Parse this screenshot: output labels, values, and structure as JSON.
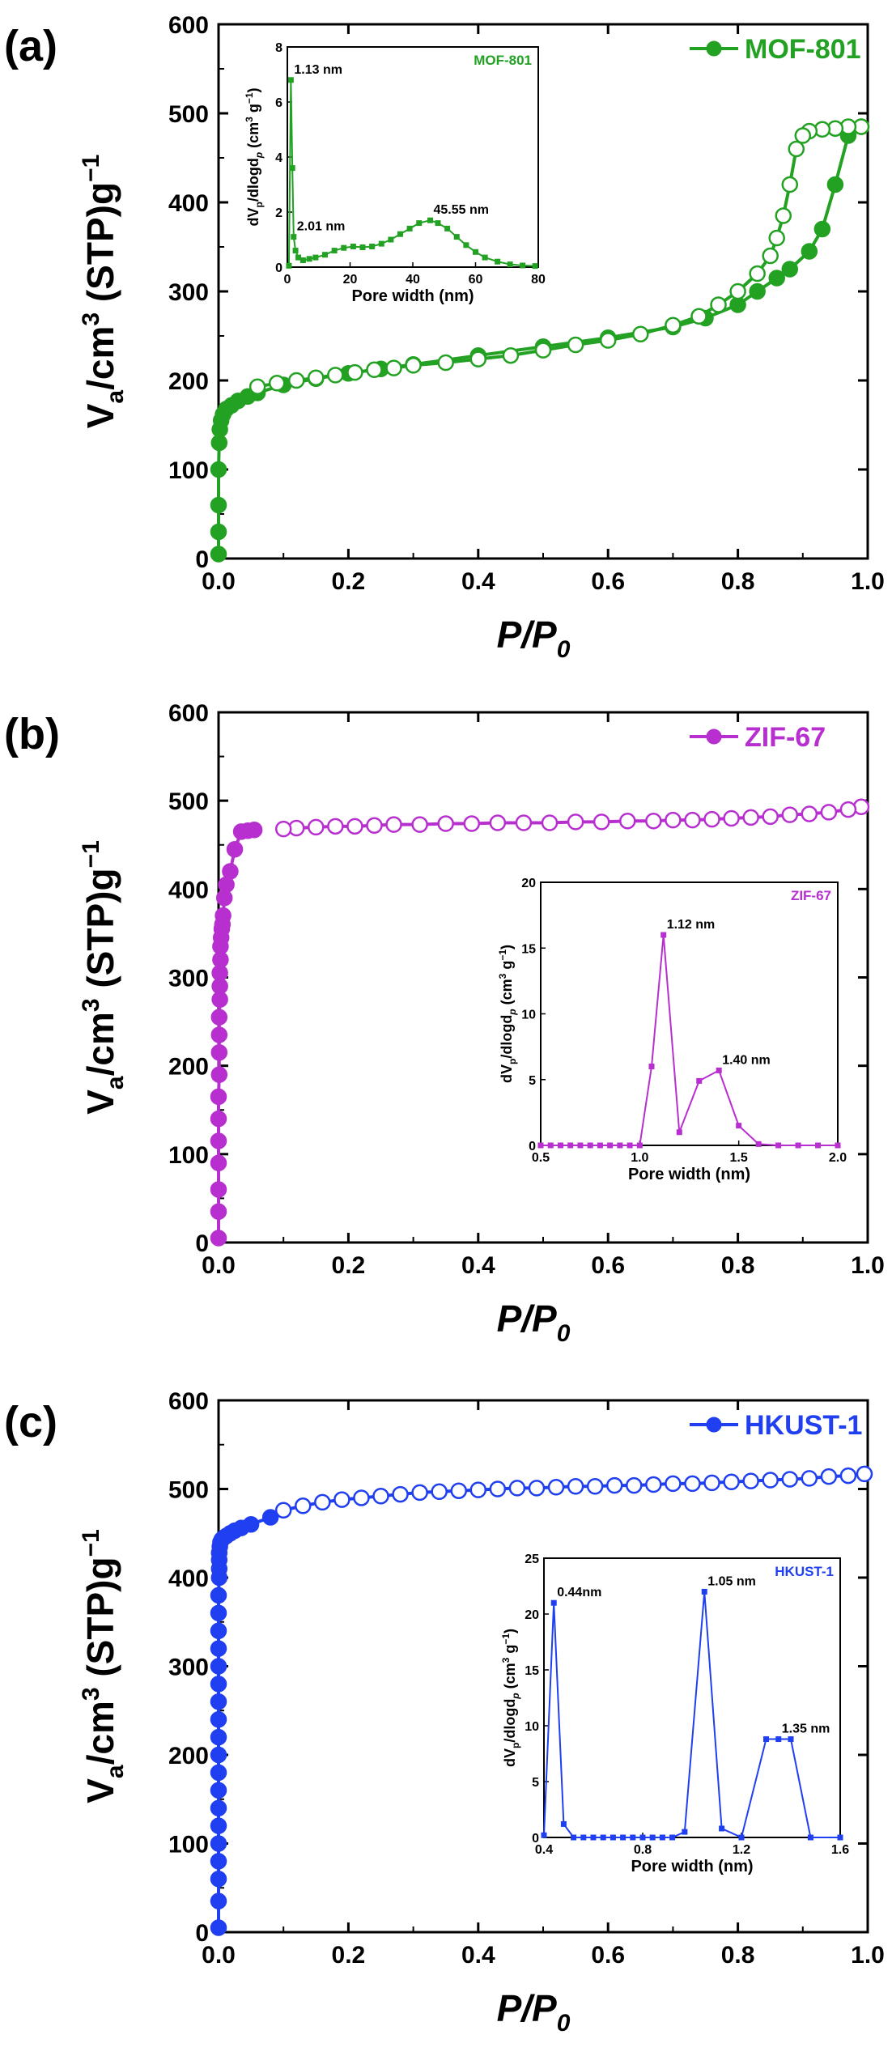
{
  "colors": {
    "mof801": "#22a122",
    "zif67": "#b82fd0",
    "hkust1": "#1f3ff0",
    "axis": "#000000"
  },
  "chart_data": [
    {
      "type": "line",
      "panel_label": "(a)",
      "legend": "MOF-801",
      "xlabel_main": "P/P",
      "xlabel_sub": "0",
      "ylabel_main": "V",
      "ylabel_sub": "a",
      "ylabel_rest": "/cm",
      "ylabel_sup1": "3",
      "ylabel_tail": " (STP)g",
      "ylabel_sup2": "−1",
      "xlim": [
        0,
        1.0
      ],
      "ylim": [
        0,
        600
      ],
      "xticks": [
        "0.0",
        "0.2",
        "0.4",
        "0.6",
        "0.8",
        "1.0"
      ],
      "yticks": [
        "0",
        "100",
        "200",
        "300",
        "400",
        "500",
        "600"
      ],
      "series": [
        {
          "name": "adsorption",
          "marker": "filled",
          "x": [
            0.0,
            0.0,
            0.0,
            0.0,
            0.001,
            0.002,
            0.004,
            0.007,
            0.012,
            0.02,
            0.03,
            0.045,
            0.06,
            0.1,
            0.15,
            0.2,
            0.25,
            0.3,
            0.4,
            0.5,
            0.6,
            0.7,
            0.75,
            0.8,
            0.83,
            0.86,
            0.88,
            0.91,
            0.93,
            0.95,
            0.97,
            0.99
          ],
          "y": [
            5,
            30,
            60,
            100,
            130,
            145,
            155,
            162,
            168,
            172,
            177,
            182,
            186,
            195,
            202,
            208,
            213,
            218,
            228,
            238,
            248,
            260,
            270,
            285,
            300,
            315,
            325,
            345,
            370,
            420,
            475,
            485
          ]
        },
        {
          "name": "desorption",
          "marker": "open",
          "x": [
            0.99,
            0.97,
            0.95,
            0.93,
            0.91,
            0.9,
            0.89,
            0.88,
            0.87,
            0.86,
            0.85,
            0.83,
            0.8,
            0.77,
            0.74,
            0.7,
            0.65,
            0.6,
            0.55,
            0.5,
            0.45,
            0.4,
            0.35,
            0.3,
            0.27,
            0.24,
            0.21,
            0.18,
            0.15,
            0.12,
            0.09,
            0.06
          ],
          "y": [
            485,
            485,
            483,
            482,
            480,
            475,
            460,
            420,
            385,
            360,
            340,
            320,
            300,
            285,
            272,
            262,
            252,
            245,
            240,
            234,
            228,
            224,
            220,
            217,
            214,
            212,
            209,
            206,
            203,
            200,
            197,
            193
          ]
        }
      ],
      "inset": {
        "legend": "MOF-801",
        "xlabel": "Pore width (nm)",
        "ylabel_main": "dV",
        "ylabel_sub1": "p",
        "ylabel_mid": "/dlogd",
        "ylabel_sub2": "p",
        "ylabel_rest": " (cm",
        "ylabel_sup1": "3",
        "ylabel_mid2": " g",
        "ylabel_sup2": "−1",
        "ylabel_end": ")",
        "xlim": [
          0,
          80
        ],
        "ylim": [
          0,
          8
        ],
        "xticks": [
          "0",
          "20",
          "40",
          "60",
          "80"
        ],
        "yticks": [
          "0",
          "2",
          "4",
          "6",
          "8"
        ],
        "x": [
          0.5,
          1.13,
          1.6,
          2.01,
          2.6,
          3.5,
          5,
          7,
          9,
          12,
          15,
          18,
          21,
          24,
          27,
          30,
          33,
          36,
          39,
          42,
          45.55,
          48,
          51,
          54,
          57,
          60,
          63,
          67,
          71,
          75,
          79
        ],
        "y": [
          0.05,
          6.8,
          3.6,
          1.1,
          0.6,
          0.35,
          0.25,
          0.3,
          0.35,
          0.45,
          0.6,
          0.7,
          0.75,
          0.72,
          0.75,
          0.85,
          1.0,
          1.2,
          1.4,
          1.6,
          1.7,
          1.6,
          1.4,
          1.1,
          0.8,
          0.55,
          0.35,
          0.2,
          0.1,
          0.06,
          0.04
        ],
        "annotations": [
          {
            "text": "1.13 nm",
            "x": 1.13,
            "y": 6.8
          },
          {
            "text": "2.01 nm",
            "x": 2.01,
            "y": 1.1
          },
          {
            "text": "45.55 nm",
            "x": 45.55,
            "y": 1.7
          }
        ]
      }
    },
    {
      "type": "line",
      "panel_label": "(b)",
      "legend": "ZIF-67",
      "xlabel_main": "P/P",
      "xlabel_sub": "0",
      "ylabel_main": "V",
      "ylabel_sub": "a",
      "ylabel_rest": "/cm",
      "ylabel_sup1": "3",
      "ylabel_tail": " (STP)g",
      "ylabel_sup2": "−1",
      "xlim": [
        0,
        1.0
      ],
      "ylim": [
        0,
        600
      ],
      "xticks": [
        "0.0",
        "0.2",
        "0.4",
        "0.6",
        "0.8",
        "1.0"
      ],
      "yticks": [
        "0",
        "100",
        "200",
        "300",
        "400",
        "500",
        "600"
      ],
      "series": [
        {
          "name": "adsorption",
          "marker": "filled",
          "x": [
            0.0,
            0.0,
            0.0,
            0.0,
            0.0,
            0.0,
            0.0,
            0.001,
            0.001,
            0.001,
            0.001,
            0.002,
            0.002,
            0.002,
            0.003,
            0.003,
            0.004,
            0.005,
            0.006,
            0.007,
            0.009,
            0.012,
            0.018,
            0.025,
            0.035,
            0.045,
            0.055
          ],
          "y": [
            5,
            35,
            60,
            90,
            115,
            140,
            165,
            190,
            215,
            235,
            255,
            275,
            290,
            305,
            320,
            335,
            345,
            355,
            360,
            370,
            390,
            405,
            420,
            445,
            465,
            466,
            467
          ]
        },
        {
          "name": "desorption",
          "marker": "open",
          "x": [
            0.99,
            0.97,
            0.94,
            0.91,
            0.88,
            0.85,
            0.82,
            0.79,
            0.76,
            0.73,
            0.7,
            0.67,
            0.63,
            0.59,
            0.55,
            0.51,
            0.47,
            0.43,
            0.39,
            0.35,
            0.31,
            0.27,
            0.24,
            0.21,
            0.18,
            0.15,
            0.12,
            0.1
          ],
          "y": [
            493,
            490,
            487,
            485,
            484,
            482,
            481,
            480,
            479,
            478,
            478,
            477,
            477,
            476,
            476,
            475,
            475,
            475,
            474,
            474,
            473,
            473,
            472,
            471,
            471,
            470,
            469,
            468
          ]
        }
      ],
      "inset": {
        "legend": "ZIF-67",
        "xlabel": "Pore width (nm)",
        "ylabel_main": "dV",
        "ylabel_sub1": "p",
        "ylabel_mid": "/dlogd",
        "ylabel_sub2": "p",
        "ylabel_rest": " (cm",
        "ylabel_sup1": "3",
        "ylabel_mid2": " g",
        "ylabel_sup2": "−1",
        "ylabel_end": ")",
        "xlim": [
          0.5,
          2.0
        ],
        "ylim": [
          0,
          20
        ],
        "xticks": [
          "0.5",
          "1.0",
          "1.5",
          "2.0"
        ],
        "yticks": [
          "0",
          "5",
          "10",
          "15",
          "20"
        ],
        "x": [
          0.5,
          0.55,
          0.6,
          0.65,
          0.7,
          0.75,
          0.8,
          0.85,
          0.9,
          0.95,
          1.0,
          1.06,
          1.12,
          1.2,
          1.3,
          1.4,
          1.5,
          1.6,
          1.7,
          1.8,
          1.9,
          2.0
        ],
        "y": [
          0,
          0,
          0,
          0,
          0,
          0,
          0,
          0,
          0,
          0,
          0,
          6,
          16,
          1,
          4.9,
          5.7,
          1.5,
          0.1,
          0,
          0,
          0,
          0
        ],
        "annotations": [
          {
            "text": "1.12 nm",
            "x": 1.12,
            "y": 16
          },
          {
            "text": "1.40 nm",
            "x": 1.4,
            "y": 5.7
          }
        ]
      }
    },
    {
      "type": "line",
      "panel_label": "(c)",
      "legend": "HKUST-1",
      "xlabel_main": "P/P",
      "xlabel_sub": "0",
      "ylabel_main": "V",
      "ylabel_sub": "a",
      "ylabel_rest": "/cm",
      "ylabel_sup1": "3",
      "ylabel_tail": " (STP)g",
      "ylabel_sup2": "−1",
      "xlim": [
        0,
        1.0
      ],
      "ylim": [
        0,
        600
      ],
      "xticks": [
        "0.0",
        "0.2",
        "0.4",
        "0.6",
        "0.8",
        "1.0"
      ],
      "yticks": [
        "0",
        "100",
        "200",
        "300",
        "400",
        "500",
        "600"
      ],
      "series": [
        {
          "name": "adsorption",
          "marker": "filled",
          "x": [
            0.0,
            0.0,
            0.0,
            0.0,
            0.0,
            0.0,
            0.0,
            0.0,
            0.0,
            0.0,
            0.0,
            0.0,
            0.0,
            0.0,
            0.0,
            0.0,
            0.0,
            0.0,
            0.0,
            0.001,
            0.001,
            0.001,
            0.001,
            0.002,
            0.003,
            0.005,
            0.008,
            0.012,
            0.018,
            0.025,
            0.035,
            0.05,
            0.08
          ],
          "y": [
            5,
            35,
            60,
            80,
            100,
            120,
            140,
            160,
            180,
            200,
            220,
            240,
            260,
            280,
            300,
            320,
            340,
            360,
            380,
            400,
            410,
            420,
            428,
            435,
            440,
            443,
            445,
            447,
            450,
            453,
            456,
            460,
            468
          ]
        },
        {
          "name": "desorption",
          "marker": "open",
          "x": [
            0.995,
            0.97,
            0.94,
            0.91,
            0.88,
            0.85,
            0.82,
            0.79,
            0.76,
            0.73,
            0.7,
            0.67,
            0.64,
            0.61,
            0.58,
            0.55,
            0.52,
            0.49,
            0.46,
            0.43,
            0.4,
            0.37,
            0.34,
            0.31,
            0.28,
            0.25,
            0.22,
            0.19,
            0.16,
            0.13,
            0.1
          ],
          "y": [
            517,
            515,
            514,
            512,
            511,
            510,
            509,
            508,
            507,
            506,
            506,
            505,
            504,
            504,
            503,
            503,
            502,
            501,
            501,
            500,
            499,
            498,
            497,
            496,
            494,
            492,
            490,
            488,
            485,
            481,
            476
          ]
        }
      ],
      "inset": {
        "legend": "HKUST-1",
        "xlabel": "Pore width (nm)",
        "ylabel_main": "dV",
        "ylabel_sub1": "p",
        "ylabel_mid": "/dlogd",
        "ylabel_sub2": "p",
        "ylabel_rest": " (cm",
        "ylabel_sup1": "3",
        "ylabel_mid2": " g",
        "ylabel_sup2": "−1",
        "ylabel_end": ")",
        "xlim": [
          0.4,
          1.6
        ],
        "ylim": [
          0,
          25
        ],
        "xticks": [
          "0.4",
          "0.8",
          "1.2",
          "1.6"
        ],
        "yticks": [
          "0",
          "5",
          "10",
          "15",
          "20",
          "25"
        ],
        "x": [
          0.4,
          0.44,
          0.48,
          0.52,
          0.56,
          0.6,
          0.64,
          0.68,
          0.72,
          0.76,
          0.8,
          0.84,
          0.88,
          0.92,
          0.97,
          1.05,
          1.12,
          1.2,
          1.3,
          1.35,
          1.4,
          1.48,
          1.6
        ],
        "y": [
          0.2,
          21,
          1.2,
          0,
          0,
          0,
          0,
          0,
          0,
          0,
          0,
          0,
          0,
          0,
          0.5,
          22,
          0.8,
          0,
          8.8,
          8.8,
          8.8,
          0,
          0
        ],
        "annotations": [
          {
            "text": "0.44nm",
            "x": 0.44,
            "y": 21
          },
          {
            "text": "1.05 nm",
            "x": 1.05,
            "y": 22
          },
          {
            "text": "1.35 nm",
            "x": 1.35,
            "y": 8.8
          }
        ]
      }
    }
  ]
}
